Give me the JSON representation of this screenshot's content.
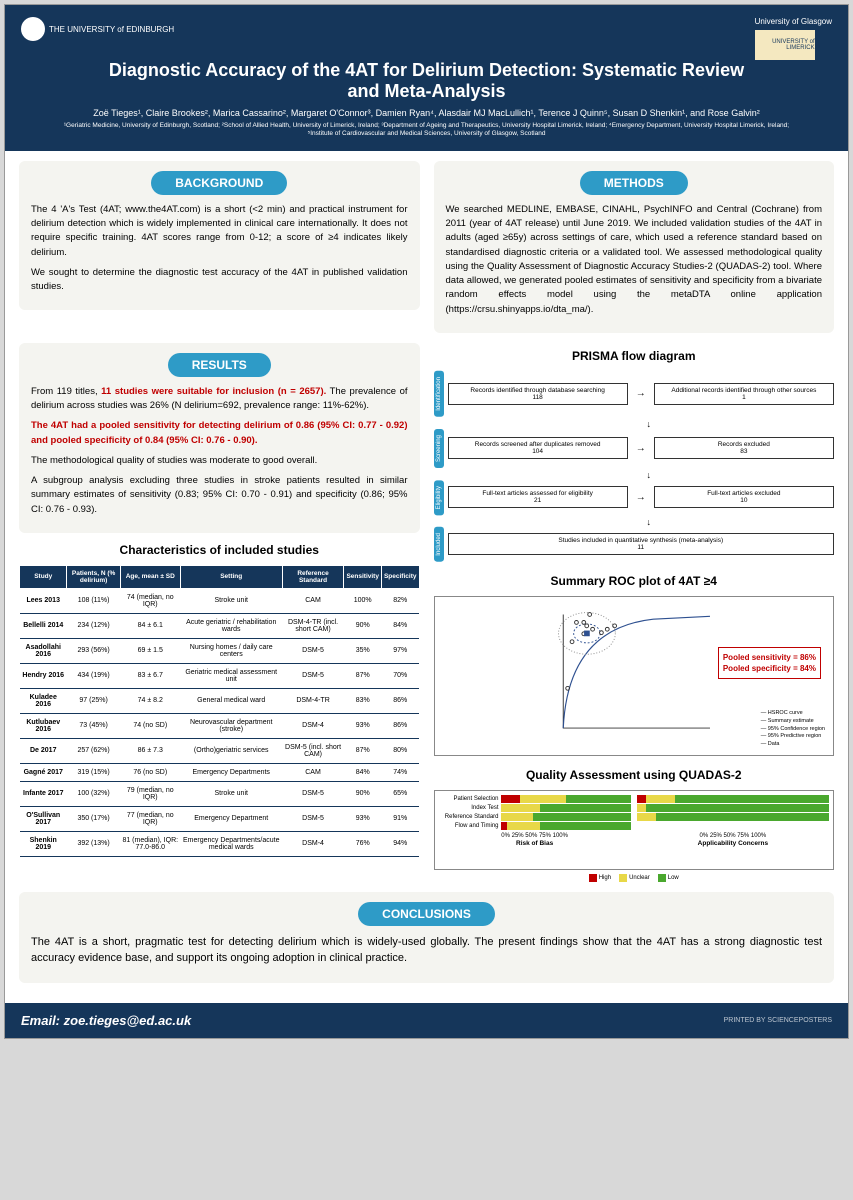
{
  "header": {
    "uni_left": "THE UNIVERSITY of EDINBURGH",
    "uni_right": "University of Glasgow",
    "uni_limerick": "UNIVERSITY of LIMERICK",
    "title": "Diagnostic Accuracy of the 4AT for Delirium Detection: Systematic Review and Meta-Analysis",
    "authors": "Zoë Tieges¹, Claire Brookes², Marica Cassarino², Margaret O'Connor³, Damien Ryan⁴, Alasdair MJ MacLullich¹, Terence J Quinn⁵, Susan D Shenkin¹, and Rose Galvin²",
    "affil": "¹Geriatric Medicine, University of Edinburgh, Scotland; ²School of Allied Health, University of Limerick, Ireland; ³Department of Ageing and Therapeutics, University Hospital Limerick, Ireland; ⁴Emergency Department, University Hospital Limerick, Ireland; ⁵Institute of Cardiovascular and Medical Sciences, University of Glasgow, Scotland"
  },
  "sections": {
    "background": "BACKGROUND",
    "methods": "METHODS",
    "results": "RESULTS",
    "conclusions": "CONCLUSIONS"
  },
  "background": {
    "p1": "The 4 'A's Test (4AT; www.the4AT.com) is a short (<2 min) and practical instrument for delirium detection which is widely implemented in clinical care internationally. It does not require specific training. 4AT scores range from 0-12; a score of ≥4 indicates likely delirium.",
    "p2": "We sought to determine the diagnostic test accuracy of the 4AT in published validation studies."
  },
  "methods": {
    "p1": "We searched MEDLINE, EMBASE, CINAHL, PsychINFO and Central (Cochrane) from 2011 (year of 4AT release) until June 2019. We included validation studies of the 4AT in adults (aged ≥65y) across settings of care, which used a reference standard based on standardised diagnostic criteria or a validated tool. We assessed methodological quality using the Quality Assessment of Diagnostic Accuracy Studies-2 (QUADAS-2) tool. Where data allowed, we generated pooled estimates of sensitivity and specificity from a bivariate random effects model using the metaDTA online application (https://crsu.shinyapps.io/dta_ma/)."
  },
  "results": {
    "p1a": "From 119 titles, ",
    "p1b": "11 studies were suitable for inclusion (n = 2657).",
    "p1c": " The prevalence of delirium across studies was 26% (N delirium=692, prevalence range: 11%-62%).",
    "p2": "The 4AT had a pooled sensitivity for detecting delirium of 0.86 (95% CI: 0.77 - 0.92) and pooled specificity of 0.84 (95% CI: 0.76 - 0.90).",
    "p3": "The methodological quality of studies was moderate to good overall.",
    "p4": "A subgroup analysis excluding three studies in stroke patients resulted in similar summary estimates of sensitivity (0.83; 95% CI: 0.70 - 0.91) and specificity (0.86; 95% CI: 0.76 - 0.93)."
  },
  "table": {
    "title": "Characteristics of included studies",
    "headers": [
      "Study",
      "Patients, N (% delirium)",
      "Age, mean ± SD",
      "Setting",
      "Reference Standard",
      "Sensitivity",
      "Specificity"
    ],
    "rows": [
      [
        "Lees 2013",
        "108 (11%)",
        "74 (median, no IQR)",
        "Stroke unit",
        "CAM",
        "100%",
        "82%"
      ],
      [
        "Bellelli 2014",
        "234 (12%)",
        "84 ± 6.1",
        "Acute geriatric / rehabilitation wards",
        "DSM-4-TR (incl. short CAM)",
        "90%",
        "84%"
      ],
      [
        "Asadollahi 2016",
        "293 (56%)",
        "69 ± 1.5",
        "Nursing homes / daily care centers",
        "DSM-5",
        "35%",
        "97%"
      ],
      [
        "Hendry 2016",
        "434 (19%)",
        "83 ± 6.7",
        "Geriatric medical assessment unit",
        "DSM-5",
        "87%",
        "70%"
      ],
      [
        "Kuladee 2016",
        "97 (25%)",
        "74 ± 8.2",
        "General medical ward",
        "DSM-4-TR",
        "83%",
        "86%"
      ],
      [
        "Kutlubaev 2016",
        "73 (45%)",
        "74 (no SD)",
        "Neurovascular department (stroke)",
        "DSM-4",
        "93%",
        "86%"
      ],
      [
        "De 2017",
        "257 (62%)",
        "86 ± 7.3",
        "(Ortho)geriatric services",
        "DSM-5 (incl. short CAM)",
        "87%",
        "80%"
      ],
      [
        "Gagné 2017",
        "319 (15%)",
        "76 (no SD)",
        "Emergency Departments",
        "CAM",
        "84%",
        "74%"
      ],
      [
        "Infante 2017",
        "100 (32%)",
        "79 (median, no IQR)",
        "Stroke unit",
        "DSM-5",
        "90%",
        "65%"
      ],
      [
        "O'Sullivan 2017",
        "350 (17%)",
        "77 (median, no IQR)",
        "Emergency Department",
        "DSM-5",
        "93%",
        "91%"
      ],
      [
        "Shenkin 2019",
        "392 (13%)",
        "81 (median), IQR: 77.0-86.0",
        "Emergency Departments/acute medical wards",
        "DSM-4",
        "76%",
        "94%"
      ]
    ]
  },
  "prisma": {
    "title": "PRISMA flow diagram",
    "stages": [
      "Identification",
      "Screening",
      "Eligibility",
      "Included"
    ],
    "b1": "Records identified through database searching\n118",
    "b2": "Additional records identified through other sources\n1",
    "b3": "Records screened after duplicates removed\n104",
    "b4": "Records excluded\n83",
    "b5": "Full-text articles assessed for eligibility\n21",
    "b6": "Full-text articles excluded\n10",
    "b7": "Studies included in quantitative synthesis (meta-analysis)\n11"
  },
  "roc": {
    "title": "Summary ROC plot of 4AT ≥4",
    "annot1": "Pooled sensitivity = 86%",
    "annot2": "Pooled specificity = 84%",
    "legend": [
      "HSROC curve",
      "Summary estimate",
      "95% Confidence region",
      "95% Predictive region",
      "Data"
    ],
    "points": [
      {
        "x": 0.18,
        "y": 1.0
      },
      {
        "x": 0.03,
        "y": 0.35
      },
      {
        "x": 0.3,
        "y": 0.87
      },
      {
        "x": 0.14,
        "y": 0.83
      },
      {
        "x": 0.14,
        "y": 0.93
      },
      {
        "x": 0.2,
        "y": 0.87
      },
      {
        "x": 0.26,
        "y": 0.84
      },
      {
        "x": 0.35,
        "y": 0.9
      },
      {
        "x": 0.16,
        "y": 0.9
      },
      {
        "x": 0.09,
        "y": 0.93
      },
      {
        "x": 0.06,
        "y": 0.76
      }
    ]
  },
  "quadas": {
    "title": "Quality Assessment using QUADAS-2",
    "domains": [
      "Patient Selection",
      "Index Test",
      "Reference Standard",
      "Flow and Timing"
    ],
    "risk": [
      {
        "high": 15,
        "unclear": 35,
        "low": 50
      },
      {
        "high": 0,
        "unclear": 30,
        "low": 70
      },
      {
        "high": 0,
        "unclear": 25,
        "low": 75
      },
      {
        "high": 5,
        "unclear": 25,
        "low": 70
      }
    ],
    "applic": [
      {
        "high": 5,
        "unclear": 15,
        "low": 80
      },
      {
        "high": 0,
        "unclear": 5,
        "low": 95
      },
      {
        "high": 0,
        "unclear": 10,
        "low": 90
      },
      {
        "high": 0,
        "unclear": 0,
        "low": 0
      }
    ],
    "xlabel1": "Risk of Bias",
    "xlabel2": "Applicability Concerns",
    "leg_high": "High",
    "leg_unclear": "Unclear",
    "leg_low": "Low",
    "colors": {
      "high": "#c00000",
      "unclear": "#e8d848",
      "low": "#4aa82e"
    }
  },
  "conclusions": {
    "p1": "The 4AT is a short, pragmatic test for detecting delirium which is widely-used globally. The present findings show that the 4AT has a strong diagnostic test accuracy evidence base, and support its ongoing adoption in clinical practice."
  },
  "footer": {
    "email": "Email: zoe.tieges@ed.ac.uk",
    "sp": "PRINTED BY SCIENCEPOSTERS"
  }
}
